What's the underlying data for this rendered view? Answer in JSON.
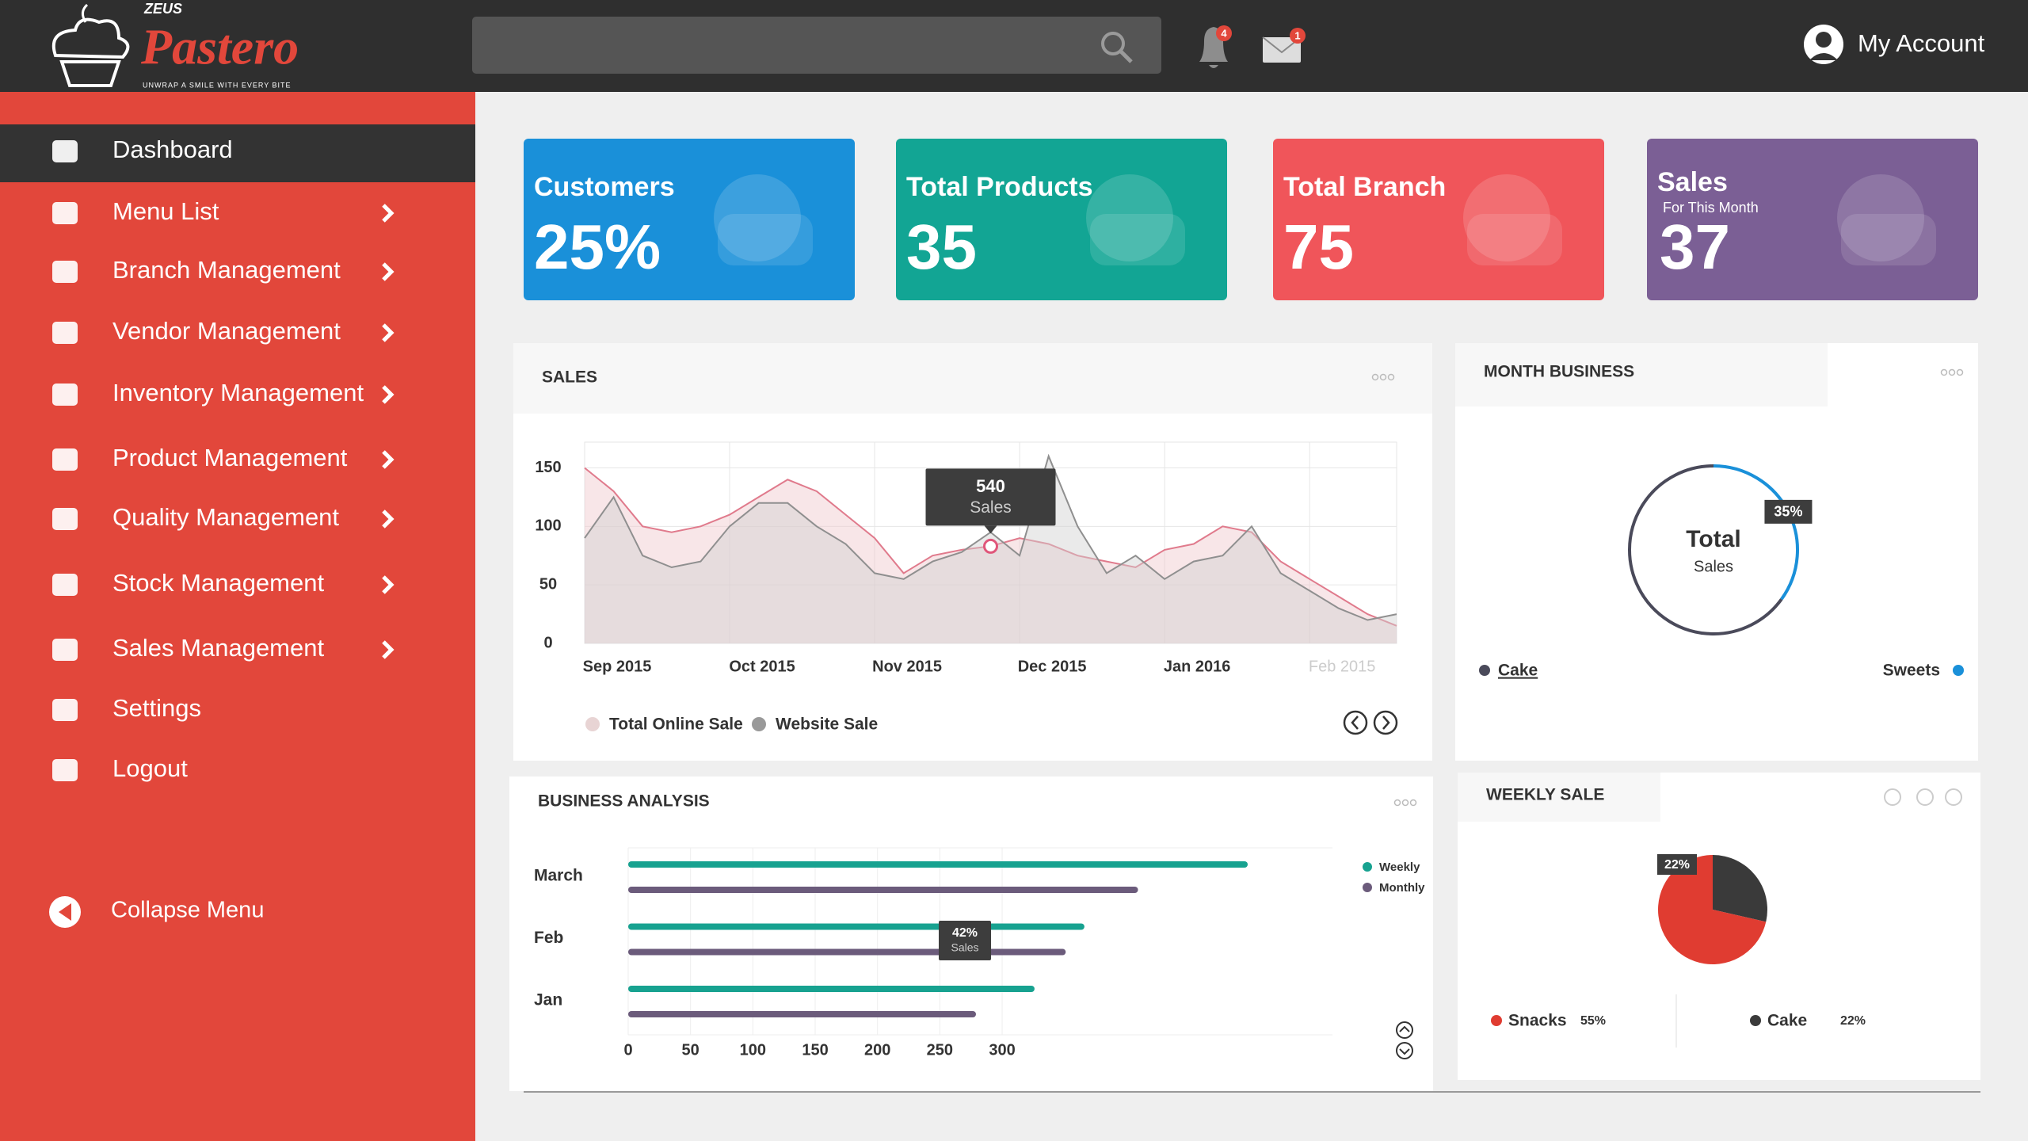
{
  "header": {
    "brand": "ZEUS",
    "logo": "Pastero",
    "tagline": "UNWRAP A SMILE WITH EVERY BITE",
    "notifications": 4,
    "messages": 1,
    "account": "My Account"
  },
  "sidebar": {
    "items": [
      "Dashboard",
      "Menu List",
      "Branch Management",
      "Vendor Management",
      "Inventory Management",
      "Product Management",
      "Quality Management",
      "Stock Management",
      "Sales Management",
      "Settings",
      "Logout"
    ],
    "collapse": "Collapse Menu"
  },
  "cards": [
    {
      "title": "Customers",
      "value": "25%"
    },
    {
      "title": "Total Products",
      "value": 35
    },
    {
      "title": "Total Branch",
      "value": 75
    },
    {
      "title": "Sales",
      "subtitle": "For This Month",
      "value": 37
    }
  ],
  "chart_data": [
    {
      "type": "area",
      "title": "SALES",
      "x": [
        0,
        0.2,
        0.4,
        0.6,
        0.8,
        1,
        1.2,
        1.4,
        1.6,
        1.8,
        2,
        2.2,
        2.4,
        2.6,
        2.8,
        3,
        3.2,
        3.4,
        3.6,
        3.8,
        4,
        4.2,
        4.4,
        4.6,
        4.8,
        5,
        5.2,
        5.4,
        5.6
      ],
      "xlim": [
        0,
        5.6
      ],
      "xticks": [
        {
          "value": 0,
          "label": "Sep 2015"
        },
        {
          "value": 1,
          "label": "Oct 2015"
        },
        {
          "value": 2,
          "label": "Nov 2015"
        },
        {
          "value": 3,
          "label": "Dec 2015"
        },
        {
          "value": 4,
          "label": "Jan 2016"
        },
        {
          "value": 5,
          "label": "Feb 2015"
        }
      ],
      "ylim": [
        0,
        172
      ],
      "yticks": [
        0,
        50,
        100,
        150
      ],
      "grid": true,
      "series": [
        {
          "name": "Total Online Sale",
          "color": "#e07a8c",
          "values": [
            150,
            130,
            100,
            95,
            100,
            110,
            125,
            140,
            130,
            110,
            90,
            60,
            75,
            80,
            83,
            90,
            85,
            75,
            70,
            65,
            80,
            85,
            100,
            95,
            70,
            55,
            40,
            25,
            15
          ]
        },
        {
          "name": "Website Sale",
          "color": "#8f8f8f",
          "values": [
            90,
            125,
            75,
            65,
            70,
            100,
            120,
            120,
            100,
            85,
            60,
            55,
            70,
            78,
            95,
            75,
            160,
            100,
            60,
            75,
            55,
            70,
            75,
            100,
            60,
            45,
            30,
            20,
            25
          ]
        }
      ],
      "annotation": {
        "value": "540",
        "label": "Sales"
      }
    },
    {
      "type": "hbar",
      "title": "BUSINESS ANALYSIS",
      "categories": [
        "March",
        "Feb",
        "Jan"
      ],
      "series": [
        {
          "name": "Weekly",
          "color": "#17a290",
          "values": [
            497,
            366,
            326
          ]
        },
        {
          "name": "Monthly",
          "color": "#6b5b7b",
          "values": [
            409,
            351,
            279
          ]
        }
      ],
      "xlim": [
        0,
        565
      ],
      "xticks": [
        0,
        50,
        100,
        150,
        200,
        250,
        300
      ],
      "grid": true,
      "annotation": {
        "value": "42%",
        "label": "Sales"
      }
    },
    {
      "type": "donut",
      "title": "MONTH BUSINESS",
      "center_label": "Total",
      "center_sublabel": "Sales",
      "categories": [
        "Cake",
        "Sweets"
      ],
      "values": [
        65,
        35
      ],
      "value_labels": [
        null,
        "35%"
      ],
      "colors": [
        "#4a4a5a",
        "#1a90d9"
      ]
    },
    {
      "type": "pie",
      "title": "WEEKLY SALE",
      "categories": [
        "Snacks",
        "Cake"
      ],
      "values": [
        55,
        22
      ],
      "value_labels": [
        "55%",
        "22%"
      ],
      "colors": [
        "#e03c31",
        "#3a3a3a"
      ]
    }
  ]
}
